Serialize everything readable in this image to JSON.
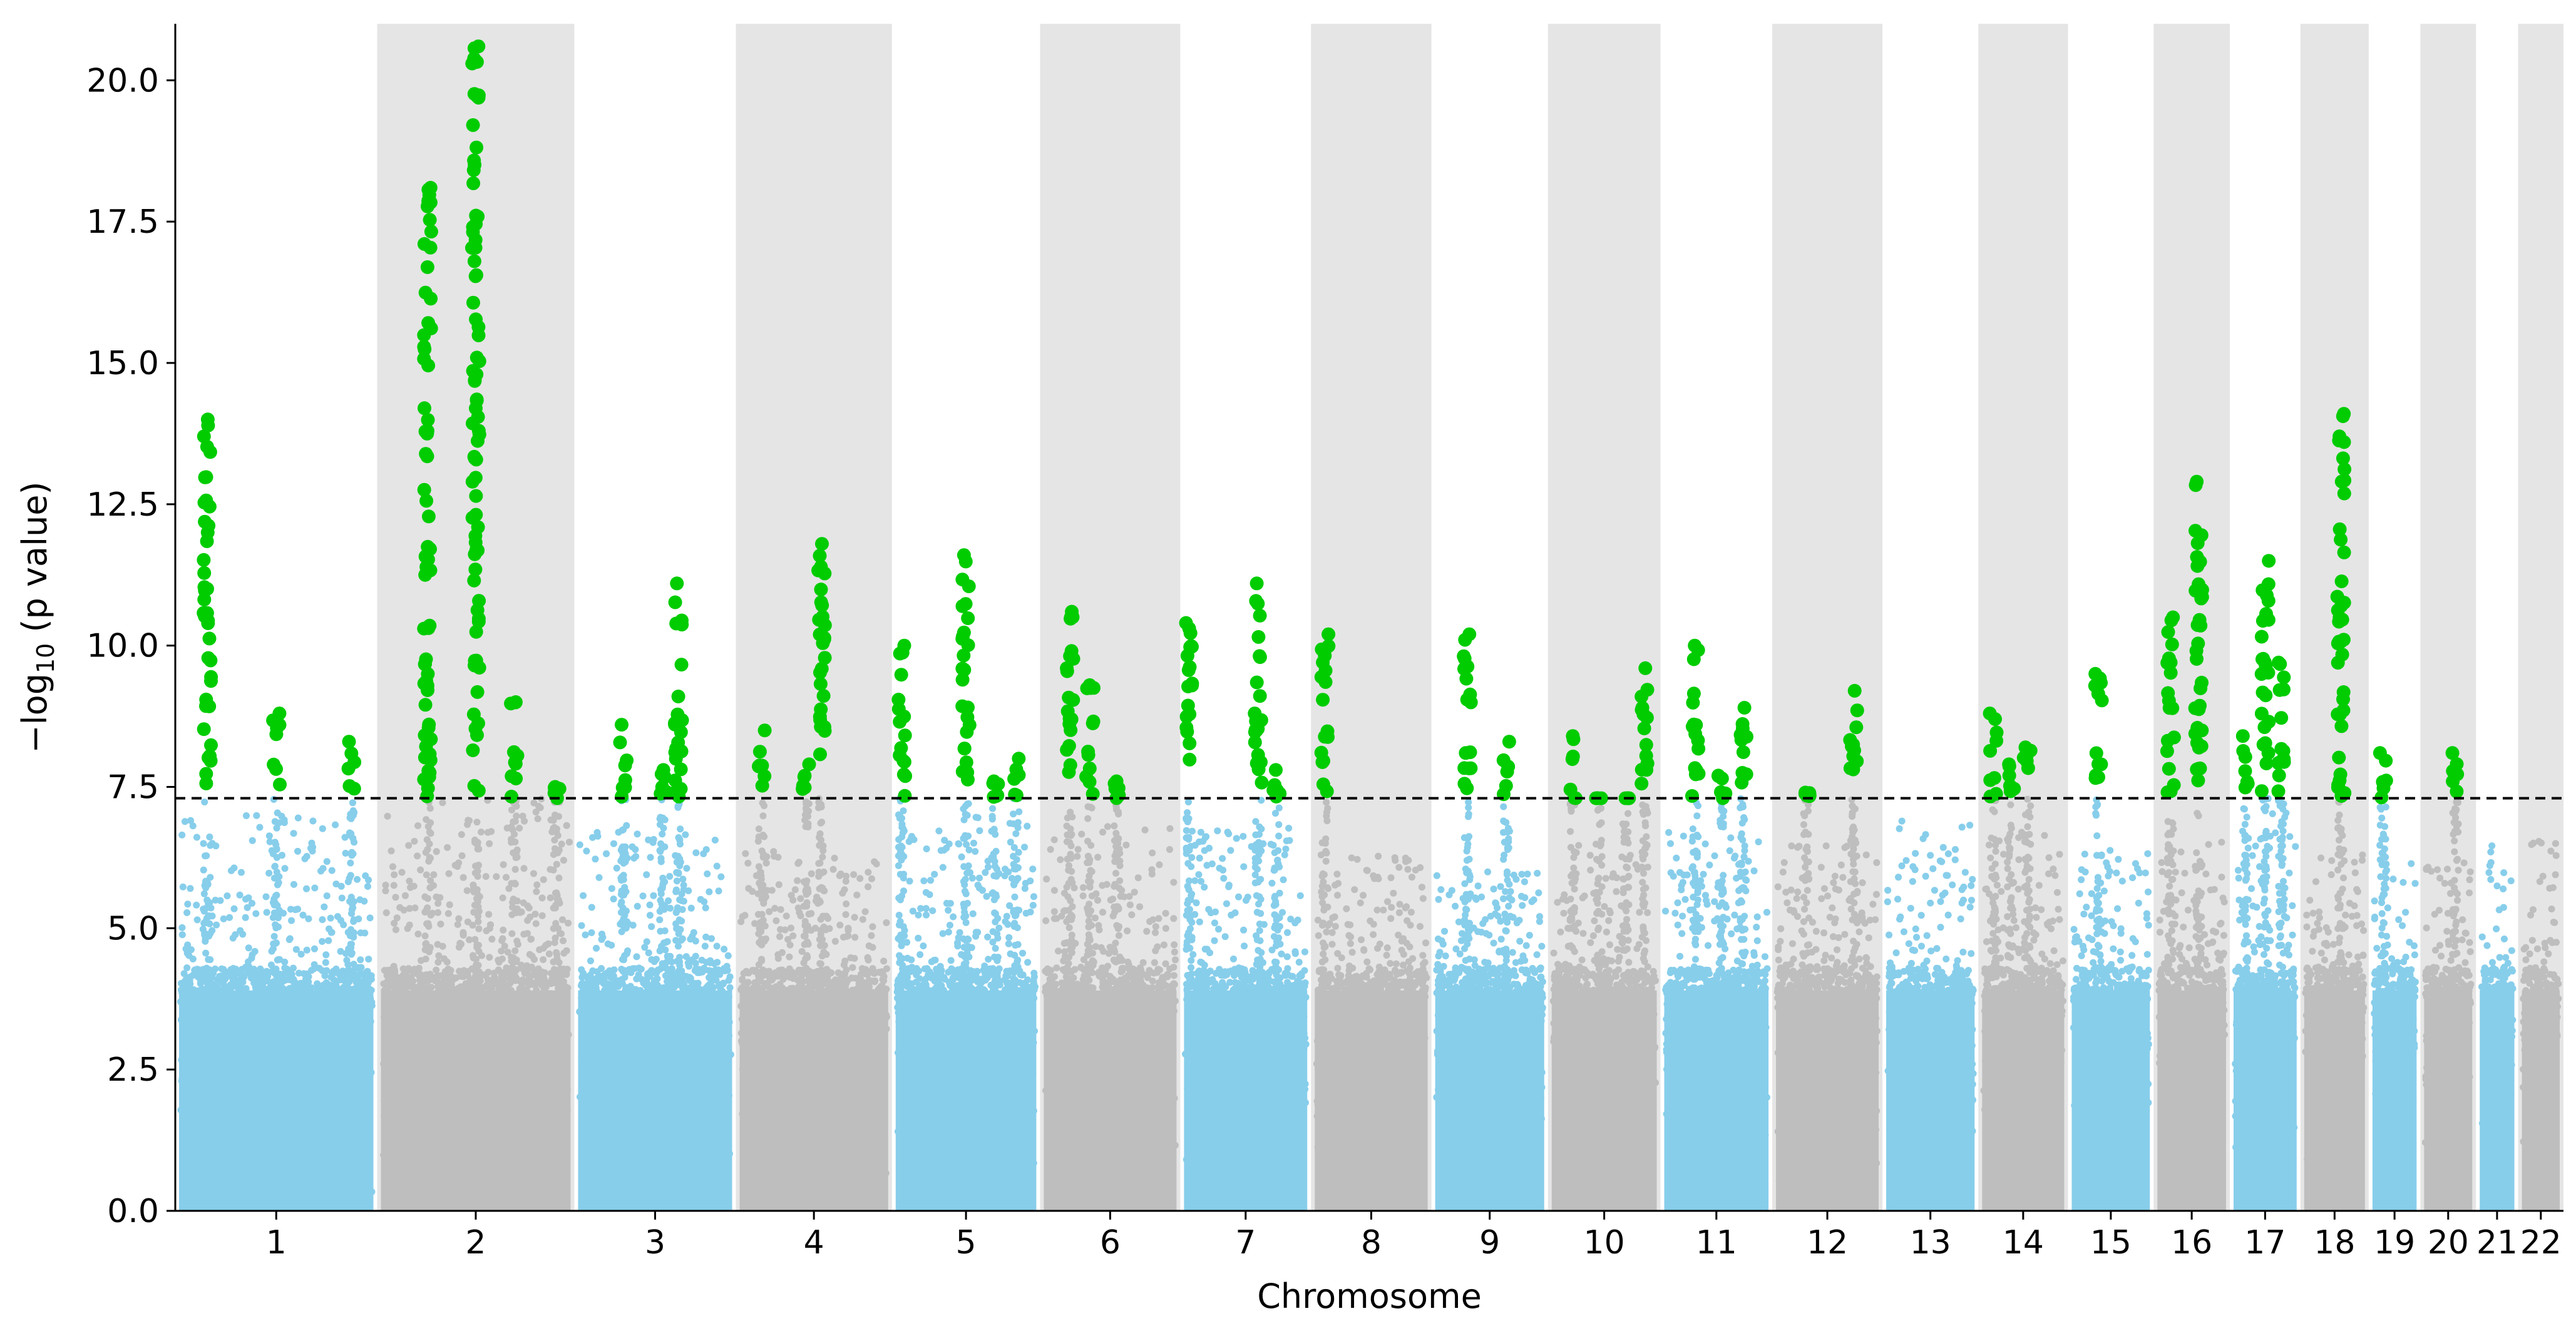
{
  "chart_data": {
    "type": "scatter",
    "subtype": "manhattan",
    "title": "",
    "xlabel": "Chromosome",
    "ylabel": {
      "base": "−log",
      "subscript": "10",
      "rest": " (p value)"
    },
    "ylim": [
      0,
      21
    ],
    "yticks": [
      "0.0",
      "2.5",
      "5.0",
      "7.5",
      "10.0",
      "12.5",
      "15.0",
      "17.5",
      "20.0"
    ],
    "threshold": 7.3,
    "grid": false,
    "legend": "none",
    "colors": {
      "odd_chromosome": "#87ceeb",
      "even_chromosome": "#bebebe",
      "significant": "#00cc00",
      "band": "#e5e5e5",
      "threshold": "#000000"
    },
    "chromosomes": [
      {
        "label": "1",
        "length": 249,
        "max_nonsig": 7.0,
        "peaks": [
          [
            0.15,
            14.0
          ],
          [
            0.5,
            8.8
          ],
          [
            0.88,
            8.3
          ]
        ]
      },
      {
        "label": "2",
        "length": 243,
        "max_nonsig": 7.3,
        "peaks": [
          [
            0.25,
            18.1
          ],
          [
            0.5,
            20.6
          ],
          [
            0.7,
            9.0
          ],
          [
            0.92,
            7.5
          ]
        ]
      },
      {
        "label": "3",
        "length": 198,
        "max_nonsig": 6.7,
        "peaks": [
          [
            0.3,
            8.6
          ],
          [
            0.55,
            7.8
          ],
          [
            0.65,
            11.1
          ]
        ]
      },
      {
        "label": "4",
        "length": 191,
        "max_nonsig": 6.5,
        "peaks": [
          [
            0.15,
            8.5
          ],
          [
            0.45,
            7.9
          ],
          [
            0.55,
            11.8
          ]
        ]
      },
      {
        "label": "5",
        "length": 181,
        "max_nonsig": 7.0,
        "peaks": [
          [
            0.05,
            10.0
          ],
          [
            0.5,
            11.6
          ],
          [
            0.7,
            7.6
          ],
          [
            0.85,
            8.0
          ]
        ]
      },
      {
        "label": "6",
        "length": 171,
        "max_nonsig": 6.8,
        "peaks": [
          [
            0.2,
            10.6
          ],
          [
            0.35,
            9.3
          ],
          [
            0.55,
            7.6
          ]
        ]
      },
      {
        "label": "7",
        "length": 159,
        "max_nonsig": 6.8,
        "peaks": [
          [
            0.05,
            10.4
          ],
          [
            0.6,
            11.1
          ],
          [
            0.75,
            7.8
          ]
        ]
      },
      {
        "label": "8",
        "length": 146,
        "max_nonsig": 6.3,
        "peaks": [
          [
            0.1,
            10.2
          ]
        ]
      },
      {
        "label": "9",
        "length": 141,
        "max_nonsig": 6.0,
        "peaks": [
          [
            0.3,
            10.2
          ],
          [
            0.65,
            8.3
          ]
        ]
      },
      {
        "label": "10",
        "length": 136,
        "max_nonsig": 6.5,
        "peaks": [
          [
            0.2,
            8.4
          ],
          [
            0.45,
            7.3
          ],
          [
            0.7,
            7.3
          ],
          [
            0.88,
            9.6
          ]
        ]
      },
      {
        "label": "11",
        "length": 135,
        "max_nonsig": 6.9,
        "peaks": [
          [
            0.3,
            10.0
          ],
          [
            0.55,
            7.7
          ],
          [
            0.75,
            8.9
          ]
        ]
      },
      {
        "label": "12",
        "length": 133,
        "max_nonsig": 6.5,
        "peaks": [
          [
            0.3,
            7.4
          ],
          [
            0.75,
            9.2
          ]
        ]
      },
      {
        "label": "13",
        "length": 115,
        "max_nonsig": 6.9,
        "peaks": []
      },
      {
        "label": "14",
        "length": 107,
        "max_nonsig": 6.7,
        "peaks": [
          [
            0.15,
            8.8
          ],
          [
            0.35,
            7.9
          ],
          [
            0.55,
            8.2
          ]
        ]
      },
      {
        "label": "15",
        "length": 102,
        "max_nonsig": 6.5,
        "peaks": [
          [
            0.35,
            9.5
          ]
        ]
      },
      {
        "label": "16",
        "length": 90,
        "max_nonsig": 6.6,
        "peaks": [
          [
            0.2,
            10.5
          ],
          [
            0.6,
            12.9
          ]
        ]
      },
      {
        "label": "17",
        "length": 83,
        "max_nonsig": 7.2,
        "peaks": [
          [
            0.2,
            8.4
          ],
          [
            0.5,
            11.5
          ],
          [
            0.75,
            9.7
          ]
        ]
      },
      {
        "label": "18",
        "length": 80,
        "max_nonsig": 6.3,
        "peaks": [
          [
            0.6,
            14.1
          ]
        ]
      },
      {
        "label": "19",
        "length": 59,
        "max_nonsig": 6.3,
        "peaks": [
          [
            0.25,
            8.1
          ]
        ]
      },
      {
        "label": "20",
        "length": 64,
        "max_nonsig": 6.5,
        "peaks": [
          [
            0.65,
            8.1
          ]
        ]
      },
      {
        "label": "21",
        "length": 47,
        "max_nonsig": 6.6,
        "peaks": []
      },
      {
        "label": "22",
        "length": 51,
        "max_nonsig": 6.7,
        "peaks": []
      }
    ]
  }
}
